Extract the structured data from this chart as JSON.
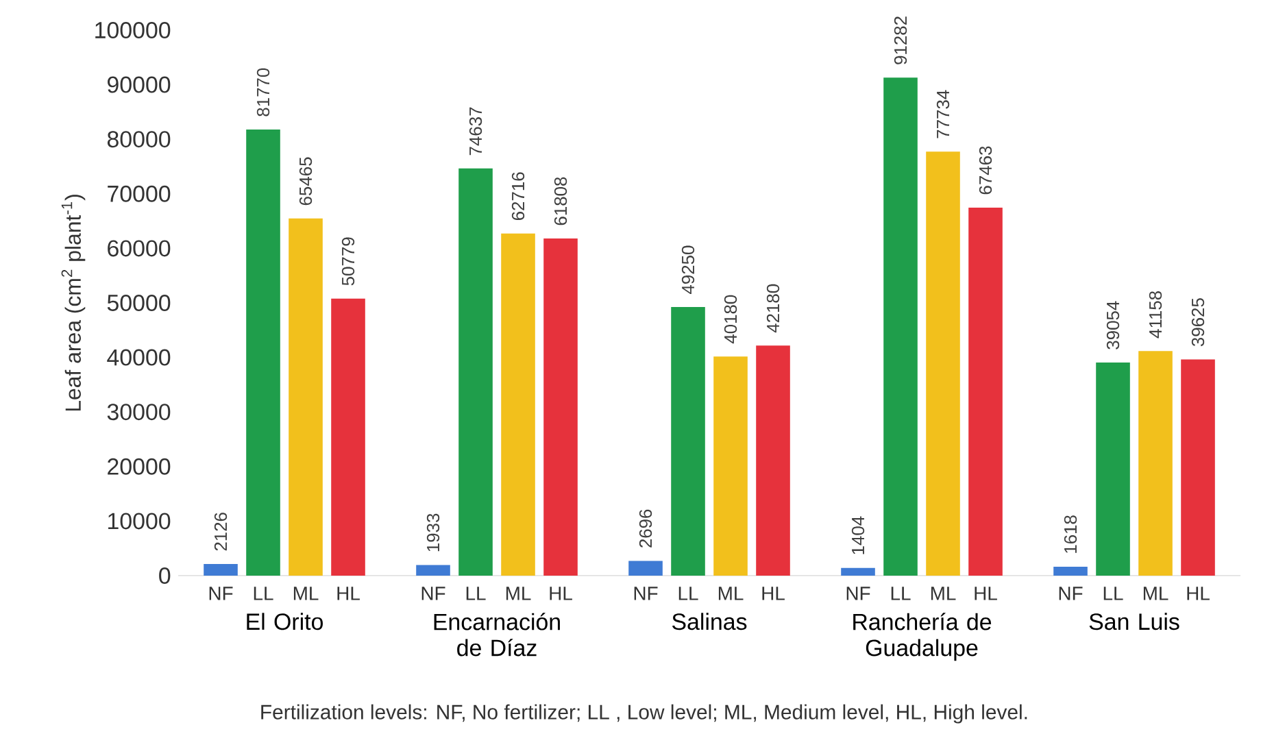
{
  "chart_data": {
    "type": "bar",
    "ylabel": "Leaf area (cm$^{2}$ plant$^{-1}$)",
    "categories": [
      "El Orito",
      "Encarnación de Díaz",
      "Salinas",
      "Ranchería de Guadalupe",
      "San Luis"
    ],
    "series": [
      {
        "name": "NF",
        "color": "#3f7bd4",
        "values": [
          2126,
          1933,
          2696,
          1404,
          1618
        ]
      },
      {
        "name": "LL",
        "color": "#1f9e4b",
        "values": [
          81770,
          74637,
          49250,
          91282,
          39054
        ]
      },
      {
        "name": "ML",
        "color": "#f2c01c",
        "values": [
          65465,
          62716,
          40180,
          77734,
          41158
        ]
      },
      {
        "name": "HL",
        "color": "#e6323c",
        "values": [
          50779,
          61808,
          42180,
          67463,
          39625
        ]
      }
    ],
    "ylim": [
      0,
      100000
    ],
    "yticks": [
      0,
      10000,
      20000,
      30000,
      40000,
      50000,
      60000,
      70000,
      80000,
      90000,
      100000
    ],
    "data_labels": true,
    "annotations": [
      "Fertilization levels:  NF, No fertilizer; LL , Low level; ML, Medium level, HL, High level."
    ]
  }
}
